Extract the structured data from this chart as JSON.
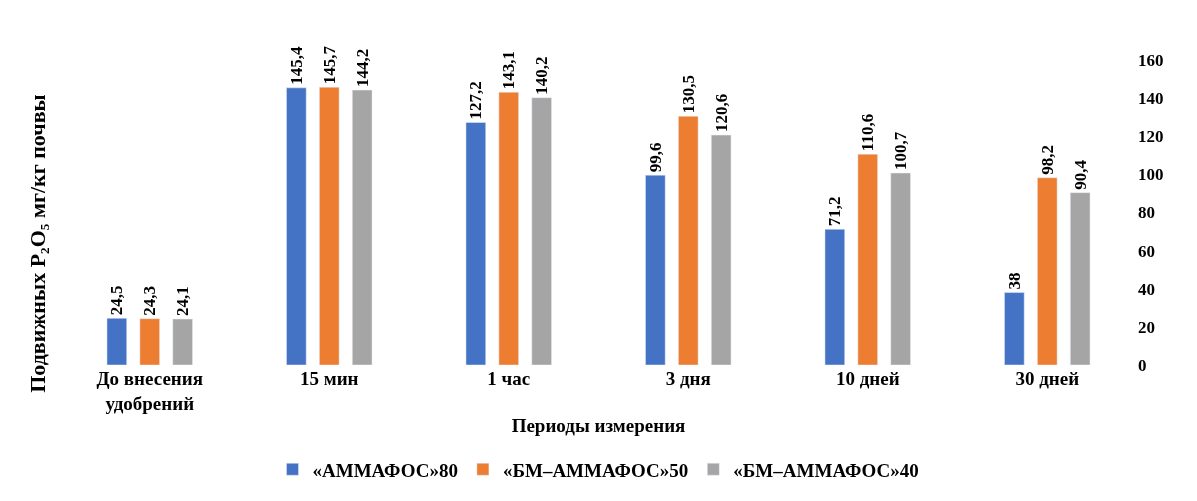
{
  "chart_data": {
    "type": "bar",
    "xlabel": "Периоды измерения",
    "ylabel": "Подвижных P₂O₅ мг/кг почвы",
    "categories": [
      "До внесения удобрений",
      "15 мин",
      "1 час",
      "3 дня",
      "10 дней",
      "30 дней"
    ],
    "series": [
      {
        "name": "«АММАФОС»80",
        "color": "#4472c4",
        "values": [
          24.5,
          145.4,
          127.2,
          99.6,
          71.2,
          38
        ],
        "value_labels": [
          "24,5",
          "145,4",
          "127,2",
          "99,6",
          "71,2",
          "38"
        ]
      },
      {
        "name": "«БМ–АММАФОС»50",
        "color": "#ed7d31",
        "values": [
          24.3,
          145.7,
          143.1,
          130.5,
          110.6,
          98.2
        ],
        "value_labels": [
          "24,3",
          "145,7",
          "143,1",
          "130,5",
          "110,6",
          "98,2"
        ]
      },
      {
        "name": "«БМ–АММАФОС»40",
        "color": "#a5a5a5",
        "values": [
          24.1,
          144.2,
          140.2,
          120.6,
          100.7,
          90.4
        ],
        "value_labels": [
          "24,1",
          "144,2",
          "140,2",
          "120,6",
          "100,7",
          "90,4"
        ]
      }
    ],
    "ylim": [
      0,
      160
    ],
    "yticks": [
      0,
      20,
      40,
      60,
      80,
      100,
      120,
      140,
      160
    ],
    "legend": "bottom"
  }
}
